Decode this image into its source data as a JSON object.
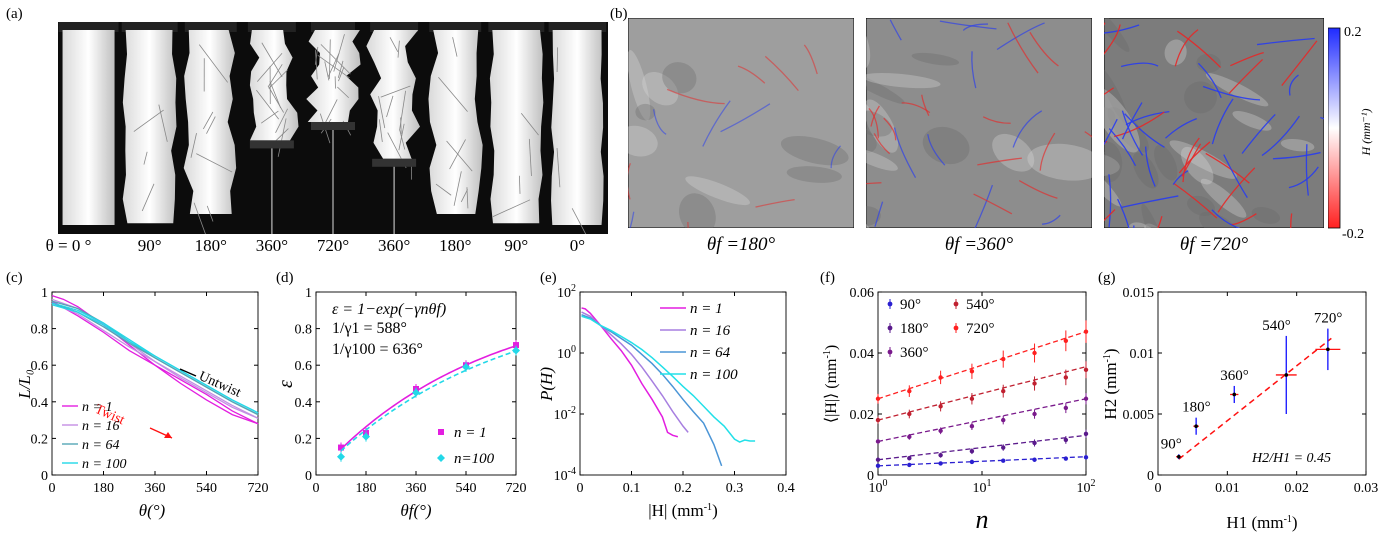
{
  "panel_labels": {
    "a": "(a)",
    "b": "(b)",
    "c": "(c)",
    "d": "(d)",
    "e": "(e)",
    "f": "(f)",
    "g": "(g)"
  },
  "panel_a": {
    "angles": [
      "θ = 0 °",
      "90°",
      "180°",
      "360°",
      "720°",
      "360°",
      "180°",
      "90°",
      "0°"
    ]
  },
  "panel_b": {
    "captions": [
      "θf =180°",
      "θf =360°",
      "θf =720°"
    ],
    "colorbar": {
      "max_label": "0.2",
      "min_label": "-0.2",
      "label": "H (mm⁻¹)",
      "top_color": "#1f2bff",
      "bottom_color": "#ff2020"
    }
  },
  "chart_data": [
    {
      "id": "c",
      "type": "line",
      "xlabel": "θ(°)",
      "ylabel": "L/L₀",
      "xlim": [
        0,
        720
      ],
      "ylim": [
        0,
        1
      ],
      "xticks": [
        "0",
        "180",
        "360",
        "540",
        "720"
      ],
      "yticks": [
        "0",
        "0.2",
        "0.4",
        "0.6",
        "0.8",
        "1"
      ],
      "annotations": {
        "twist": "Twist",
        "untwist": "Untwist"
      },
      "series": [
        {
          "name": "n = 1",
          "color": "#e31ee0",
          "twist": [
            [
              0,
              0.98
            ],
            [
              40,
              0.96
            ],
            [
              90,
              0.92
            ],
            [
              180,
              0.82
            ],
            [
              270,
              0.71
            ],
            [
              360,
              0.6
            ],
            [
              450,
              0.5
            ],
            [
              540,
              0.41
            ],
            [
              630,
              0.33
            ],
            [
              720,
              0.28
            ]
          ],
          "untwist": [
            [
              720,
              0.28
            ],
            [
              630,
              0.35
            ],
            [
              540,
              0.44
            ],
            [
              450,
              0.52
            ],
            [
              360,
              0.6
            ],
            [
              270,
              0.68
            ],
            [
              180,
              0.78
            ],
            [
              90,
              0.87
            ],
            [
              0,
              0.95
            ]
          ]
        },
        {
          "name": "n = 16",
          "color": "#c48fe3",
          "twist": [
            [
              0,
              0.96
            ],
            [
              90,
              0.91
            ],
            [
              180,
              0.82
            ],
            [
              270,
              0.72
            ],
            [
              360,
              0.62
            ],
            [
              450,
              0.53
            ],
            [
              540,
              0.45
            ],
            [
              630,
              0.37
            ],
            [
              720,
              0.31
            ]
          ],
          "untwist": [
            [
              720,
              0.31
            ],
            [
              630,
              0.38
            ],
            [
              540,
              0.46
            ],
            [
              450,
              0.54
            ],
            [
              360,
              0.62
            ],
            [
              270,
              0.7
            ],
            [
              180,
              0.79
            ],
            [
              90,
              0.88
            ],
            [
              0,
              0.94
            ]
          ]
        },
        {
          "name": "n = 64",
          "color": "#54a6b6",
          "twist": [
            [
              0,
              0.95
            ],
            [
              90,
              0.91
            ],
            [
              180,
              0.83
            ],
            [
              270,
              0.73
            ],
            [
              360,
              0.64
            ],
            [
              450,
              0.56
            ],
            [
              540,
              0.48
            ],
            [
              630,
              0.4
            ],
            [
              720,
              0.33
            ]
          ],
          "untwist": [
            [
              720,
              0.33
            ],
            [
              630,
              0.4
            ],
            [
              540,
              0.48
            ],
            [
              450,
              0.56
            ],
            [
              360,
              0.64
            ],
            [
              270,
              0.72
            ],
            [
              180,
              0.81
            ],
            [
              90,
              0.89
            ],
            [
              0,
              0.94
            ]
          ]
        },
        {
          "name": "n = 100",
          "color": "#22d8e8",
          "twist": [
            [
              0,
              0.94
            ],
            [
              90,
              0.9
            ],
            [
              180,
              0.83
            ],
            [
              270,
              0.74
            ],
            [
              360,
              0.65
            ],
            [
              450,
              0.57
            ],
            [
              540,
              0.49
            ],
            [
              630,
              0.41
            ],
            [
              720,
              0.34
            ]
          ],
          "untwist": [
            [
              720,
              0.34
            ],
            [
              630,
              0.41
            ],
            [
              540,
              0.49
            ],
            [
              450,
              0.57
            ],
            [
              360,
              0.65
            ],
            [
              270,
              0.73
            ],
            [
              180,
              0.82
            ],
            [
              90,
              0.89
            ],
            [
              0,
              0.93
            ]
          ]
        }
      ]
    },
    {
      "id": "d",
      "type": "scatter",
      "xlabel": "θf(°)",
      "ylabel": "ε",
      "xlim": [
        0,
        720
      ],
      "ylim": [
        0,
        1
      ],
      "xticks": [
        "0",
        "180",
        "360",
        "540",
        "720"
      ],
      "yticks": [
        "0",
        "0.2",
        "0.4",
        "0.6",
        "0.8",
        "1"
      ],
      "equations": [
        "ε = 1−exp(−γnθf)",
        "1/γ1 = 588°",
        "1/γ100 = 636°"
      ],
      "series": [
        {
          "name": "n = 1",
          "color": "#e31ee0",
          "marker": "square",
          "points": [
            [
              90,
              0.15
            ],
            [
              180,
              0.23
            ],
            [
              360,
              0.47
            ],
            [
              540,
              0.6
            ],
            [
              720,
              0.71
            ]
          ],
          "fit_tau": 588
        },
        {
          "name": "n=100",
          "color": "#22d8e8",
          "marker": "diamond",
          "points": [
            [
              90,
              0.1
            ],
            [
              180,
              0.21
            ],
            [
              360,
              0.45
            ],
            [
              540,
              0.59
            ],
            [
              720,
              0.68
            ]
          ],
          "fit_tau": 636
        }
      ]
    },
    {
      "id": "e",
      "type": "line",
      "xlabel": "|H| (mm-1)",
      "ylabel": "P(H)",
      "xlim": [
        0,
        0.4
      ],
      "ylog": true,
      "ylim": [
        0.0001,
        100
      ],
      "xticks": [
        "0",
        "0.1",
        "0.2",
        "0.3",
        "0.4"
      ],
      "yticks": [
        "10-4",
        "10-2",
        "100",
        "102"
      ],
      "series": [
        {
          "name": "n = 1",
          "color": "#e31ee0",
          "points": [
            [
              0.003,
              30
            ],
            [
              0.01,
              28
            ],
            [
              0.02,
              20
            ],
            [
              0.04,
              8
            ],
            [
              0.06,
              3
            ],
            [
              0.08,
              1.2
            ],
            [
              0.1,
              0.4
            ],
            [
              0.12,
              0.1
            ],
            [
              0.14,
              0.03
            ],
            [
              0.16,
              0.008
            ],
            [
              0.17,
              0.0025
            ],
            [
              0.18,
              0.002
            ],
            [
              0.19,
              0.0018
            ]
          ]
        },
        {
          "name": "n = 16",
          "color": "#a77fe0",
          "points": [
            [
              0.003,
              22
            ],
            [
              0.02,
              16
            ],
            [
              0.04,
              8
            ],
            [
              0.06,
              4
            ],
            [
              0.08,
              2
            ],
            [
              0.1,
              0.9
            ],
            [
              0.12,
              0.35
            ],
            [
              0.14,
              0.12
            ],
            [
              0.16,
              0.04
            ],
            [
              0.18,
              0.012
            ],
            [
              0.2,
              0.004
            ],
            [
              0.21,
              0.0025
            ]
          ]
        },
        {
          "name": "n = 64",
          "color": "#4b95d6",
          "points": [
            [
              0.003,
              18
            ],
            [
              0.02,
              14
            ],
            [
              0.04,
              8
            ],
            [
              0.06,
              5
            ],
            [
              0.08,
              3
            ],
            [
              0.1,
              1.8
            ],
            [
              0.12,
              0.9
            ],
            [
              0.14,
              0.45
            ],
            [
              0.16,
              0.2
            ],
            [
              0.18,
              0.08
            ],
            [
              0.2,
              0.03
            ],
            [
              0.22,
              0.012
            ],
            [
              0.24,
              0.005
            ],
            [
              0.26,
              0.001
            ],
            [
              0.275,
              0.0002
            ]
          ]
        },
        {
          "name": "n = 100",
          "color": "#22e0e8",
          "points": [
            [
              0.003,
              16
            ],
            [
              0.02,
              13
            ],
            [
              0.04,
              8
            ],
            [
              0.06,
              5.5
            ],
            [
              0.08,
              3.5
            ],
            [
              0.1,
              2.2
            ],
            [
              0.12,
              1.3
            ],
            [
              0.14,
              0.7
            ],
            [
              0.16,
              0.35
            ],
            [
              0.18,
              0.17
            ],
            [
              0.2,
              0.08
            ],
            [
              0.22,
              0.04
            ],
            [
              0.24,
              0.018
            ],
            [
              0.26,
              0.008
            ],
            [
              0.28,
              0.004
            ],
            [
              0.3,
              0.0015
            ],
            [
              0.31,
              0.0012
            ],
            [
              0.32,
              0.0014
            ],
            [
              0.33,
              0.0013
            ],
            [
              0.34,
              0.0013
            ]
          ]
        }
      ]
    },
    {
      "id": "f",
      "type": "scatter",
      "xlabel": "n",
      "ylabel": "⟨|H|⟩ (mm-1)",
      "xlog": true,
      "xlim": [
        1,
        100
      ],
      "ylim": [
        0,
        0.06
      ],
      "xticks": [
        "100",
        "101",
        "102"
      ],
      "yticks": [
        "0",
        "0.02",
        "0.04",
        "0.06"
      ],
      "series": [
        {
          "name": "90°",
          "color": "#2a1fd0",
          "points": [
            [
              1,
              0.003
            ],
            [
              2,
              0.0033
            ],
            [
              4,
              0.0038
            ],
            [
              8,
              0.0043
            ],
            [
              16,
              0.0047
            ],
            [
              32,
              0.005
            ],
            [
              64,
              0.0054
            ],
            [
              100,
              0.0058
            ]
          ],
          "fit": [
            [
              1,
              0.003
            ],
            [
              100,
              0.006
            ]
          ],
          "err": 0.0008
        },
        {
          "name": "180°",
          "color": "#5a1a8c",
          "points": [
            [
              1,
              0.005
            ],
            [
              2,
              0.0055
            ],
            [
              4,
              0.0065
            ],
            [
              8,
              0.0078
            ],
            [
              16,
              0.009
            ],
            [
              32,
              0.0105
            ],
            [
              64,
              0.0115
            ],
            [
              100,
              0.0135
            ]
          ],
          "fit": [
            [
              1,
              0.005
            ],
            [
              100,
              0.013
            ]
          ],
          "err": 0.0015
        },
        {
          "name": "360°",
          "color": "#7a1a8c",
          "points": [
            [
              1,
              0.011
            ],
            [
              2,
              0.0125
            ],
            [
              4,
              0.0145
            ],
            [
              8,
              0.016
            ],
            [
              16,
              0.018
            ],
            [
              32,
              0.02
            ],
            [
              64,
              0.022
            ],
            [
              100,
              0.025
            ]
          ],
          "fit": [
            [
              1,
              0.011
            ],
            [
              100,
              0.025
            ]
          ],
          "err": 0.002
        },
        {
          "name": "540°",
          "color": "#c02030",
          "points": [
            [
              1,
              0.018
            ],
            [
              2,
              0.02
            ],
            [
              4,
              0.0225
            ],
            [
              8,
              0.025
            ],
            [
              16,
              0.0275
            ],
            [
              32,
              0.03
            ],
            [
              64,
              0.032
            ],
            [
              100,
              0.0345
            ]
          ],
          "fit": [
            [
              1,
              0.018
            ],
            [
              100,
              0.0355
            ]
          ],
          "err": 0.003
        },
        {
          "name": "720°",
          "color": "#ff2020",
          "points": [
            [
              1,
              0.025
            ],
            [
              2,
              0.0275
            ],
            [
              4,
              0.032
            ],
            [
              8,
              0.034
            ],
            [
              16,
              0.038
            ],
            [
              32,
              0.04
            ],
            [
              64,
              0.044
            ],
            [
              100,
              0.047
            ]
          ],
          "fit": [
            [
              1,
              0.025
            ],
            [
              100,
              0.047
            ]
          ],
          "err": 0.004
        }
      ]
    },
    {
      "id": "g",
      "type": "scatter",
      "xlabel": "H1 (mm-1)",
      "ylabel": "H2 (mm-1)",
      "xlim": [
        0,
        0.03
      ],
      "ylim": [
        0,
        0.015
      ],
      "xticks": [
        "0",
        "0.01",
        "0.02",
        "0.03"
      ],
      "yticks": [
        "0",
        "0.005",
        "0.01",
        "0.015"
      ],
      "annotation": "H2/H1 = 0.45",
      "fit": [
        [
          0.003,
          0.0013
        ],
        [
          0.025,
          0.0112
        ]
      ],
      "points": [
        {
          "label": "90°",
          "x": 0.003,
          "y": 0.0015,
          "xerr": 0.0004,
          "yerr": 0.0002
        },
        {
          "label": "180°",
          "x": 0.0055,
          "y": 0.004,
          "xerr": 0.0004,
          "yerr": 0.0007
        },
        {
          "label": "360°",
          "x": 0.011,
          "y": 0.0066,
          "xerr": 0.0006,
          "yerr": 0.0007
        },
        {
          "label": "540°",
          "x": 0.0185,
          "y": 0.0082,
          "xerr": 0.0015,
          "yerr": 0.0032
        },
        {
          "label": "720°",
          "x": 0.0245,
          "y": 0.0103,
          "xerr": 0.0018,
          "yerr": 0.0017
        }
      ]
    }
  ]
}
